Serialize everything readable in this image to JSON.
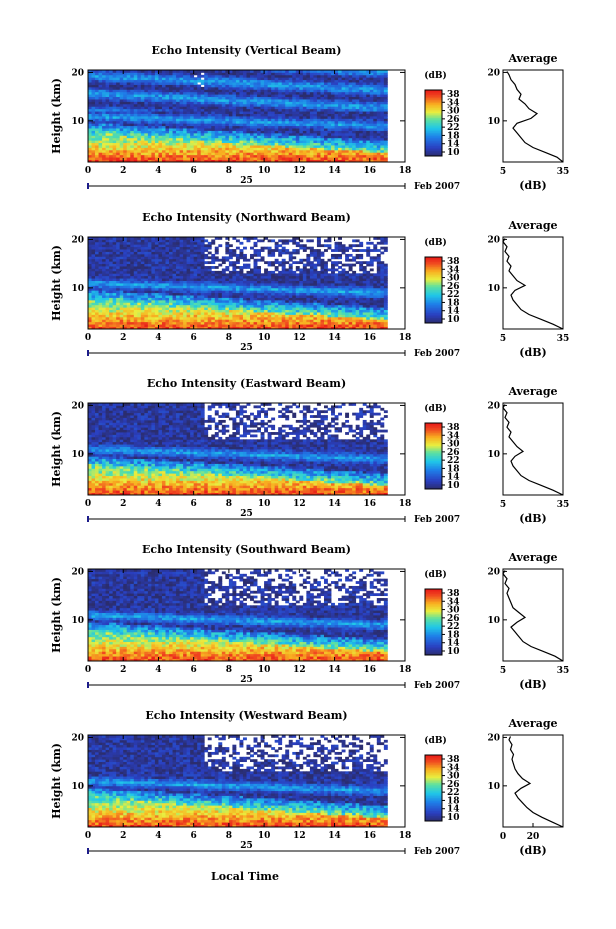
{
  "figure": {
    "xlabel": "Local Time"
  },
  "chart_data": [
    {
      "type": "heatmap",
      "title": "Echo Intensity (Vertical Beam)",
      "ylabel": "Height (km)",
      "xticks": [
        "0",
        "2",
        "4",
        "6",
        "8",
        "10",
        "12",
        "14",
        "16",
        "18"
      ],
      "yticks": [
        "10",
        "20"
      ],
      "xlim": [
        0,
        18
      ],
      "ylim": [
        1.5,
        20.5
      ],
      "data_xlim": [
        0,
        17
      ],
      "date_label": "25",
      "month_label": "Feb 2007",
      "colorbar": {
        "unit": "(dB)",
        "ticks": [
          "38",
          "34",
          "30",
          "26",
          "22",
          "18",
          "14",
          "10"
        ],
        "range": [
          10,
          38
        ]
      },
      "average": {
        "title": "Average",
        "xlabel": "(dB)",
        "xticks": [
          "5",
          "35"
        ],
        "xlim": [
          5,
          35
        ],
        "yticks": [
          "10",
          "20"
        ],
        "profile": [
          [
            35,
            1.5
          ],
          [
            32,
            2.5
          ],
          [
            26,
            3.5
          ],
          [
            20,
            4.5
          ],
          [
            16,
            5.5
          ],
          [
            14,
            6.5
          ],
          [
            12,
            7.5
          ],
          [
            10,
            8.5
          ],
          [
            12,
            9.5
          ],
          [
            19,
            10.5
          ],
          [
            22,
            11.5
          ],
          [
            18,
            12.5
          ],
          [
            16,
            13.5
          ],
          [
            13,
            14.5
          ],
          [
            14,
            15.5
          ],
          [
            12,
            16.5
          ],
          [
            11,
            17.5
          ],
          [
            9,
            18.5
          ],
          [
            8,
            19.5
          ],
          [
            7,
            20.2
          ]
        ]
      }
    },
    {
      "type": "heatmap",
      "title": "Echo Intensity (Northward Beam)",
      "ylabel": "Height (km)",
      "xticks": [
        "0",
        "2",
        "4",
        "6",
        "8",
        "10",
        "12",
        "14",
        "16",
        "18"
      ],
      "yticks": [
        "10",
        "20"
      ],
      "xlim": [
        0,
        18
      ],
      "ylim": [
        1.5,
        20.5
      ],
      "data_xlim": [
        0,
        17
      ],
      "date_label": "25",
      "month_label": "Feb 2007",
      "colorbar": {
        "unit": "(dB)",
        "ticks": [
          "38",
          "34",
          "30",
          "26",
          "22",
          "18",
          "14",
          "10"
        ],
        "range": [
          10,
          38
        ]
      },
      "average": {
        "title": "Average",
        "xlabel": "(dB)",
        "xticks": [
          "5",
          "35"
        ],
        "xlim": [
          5,
          35
        ],
        "yticks": [
          "10",
          "20"
        ],
        "profile": [
          [
            35,
            1.5
          ],
          [
            30,
            2.5
          ],
          [
            24,
            3.5
          ],
          [
            18,
            4.5
          ],
          [
            14,
            5.5
          ],
          [
            12,
            6.5
          ],
          [
            10,
            7.5
          ],
          [
            9,
            8.5
          ],
          [
            11,
            9.5
          ],
          [
            16,
            10.5
          ],
          [
            12,
            11.5
          ],
          [
            10,
            12.5
          ],
          [
            8,
            13.5
          ],
          [
            9,
            14.5
          ],
          [
            7,
            15.5
          ],
          [
            8,
            16.5
          ],
          [
            6,
            17.5
          ],
          [
            7,
            18.5
          ],
          [
            5,
            19.5
          ],
          [
            6,
            20.2
          ]
        ]
      }
    },
    {
      "type": "heatmap",
      "title": "Echo Intensity (Eastward Beam)",
      "ylabel": "Height (km)",
      "xticks": [
        "0",
        "2",
        "4",
        "6",
        "8",
        "10",
        "12",
        "14",
        "16",
        "18"
      ],
      "yticks": [
        "10",
        "20"
      ],
      "xlim": [
        0,
        18
      ],
      "ylim": [
        1.5,
        20.5
      ],
      "data_xlim": [
        0,
        17
      ],
      "date_label": "25",
      "month_label": "Feb 2007",
      "colorbar": {
        "unit": "(dB)",
        "ticks": [
          "38",
          "34",
          "30",
          "26",
          "22",
          "18",
          "14",
          "10"
        ],
        "range": [
          10,
          38
        ]
      },
      "average": {
        "title": "Average",
        "xlabel": "(dB)",
        "xticks": [
          "5",
          "35"
        ],
        "xlim": [
          5,
          35
        ],
        "yticks": [
          "10",
          "20"
        ],
        "profile": [
          [
            35,
            1.5
          ],
          [
            30,
            2.5
          ],
          [
            24,
            3.5
          ],
          [
            18,
            4.5
          ],
          [
            14,
            5.5
          ],
          [
            12,
            6.5
          ],
          [
            10,
            7.5
          ],
          [
            9,
            8.5
          ],
          [
            11,
            9.5
          ],
          [
            15,
            10.5
          ],
          [
            12,
            11.5
          ],
          [
            10,
            12.5
          ],
          [
            8,
            13.5
          ],
          [
            9,
            14.5
          ],
          [
            7,
            15.5
          ],
          [
            8,
            16.5
          ],
          [
            6,
            17.5
          ],
          [
            7,
            18.5
          ],
          [
            5,
            19.5
          ],
          [
            6,
            20.2
          ]
        ]
      }
    },
    {
      "type": "heatmap",
      "title": "Echo Intensity (Southward Beam)",
      "ylabel": "Height (km)",
      "xticks": [
        "0",
        "2",
        "4",
        "6",
        "8",
        "10",
        "12",
        "14",
        "16",
        "18"
      ],
      "yticks": [
        "10",
        "20"
      ],
      "xlim": [
        0,
        18
      ],
      "ylim": [
        1.5,
        20.5
      ],
      "data_xlim": [
        0,
        17
      ],
      "date_label": "25",
      "month_label": "Feb 2007",
      "colorbar": {
        "unit": "(dB)",
        "ticks": [
          "38",
          "34",
          "30",
          "26",
          "22",
          "18",
          "14",
          "10"
        ],
        "range": [
          10,
          38
        ]
      },
      "average": {
        "title": "Average",
        "xlabel": "(dB)",
        "xticks": [
          "5",
          "35"
        ],
        "xlim": [
          5,
          35
        ],
        "yticks": [
          "10",
          "20"
        ],
        "profile": [
          [
            35,
            1.5
          ],
          [
            31,
            2.5
          ],
          [
            25,
            3.5
          ],
          [
            19,
            4.5
          ],
          [
            15,
            5.5
          ],
          [
            13,
            6.5
          ],
          [
            11,
            7.5
          ],
          [
            9,
            8.5
          ],
          [
            12,
            9.5
          ],
          [
            16,
            10.5
          ],
          [
            13,
            11.5
          ],
          [
            10,
            12.5
          ],
          [
            9,
            13.5
          ],
          [
            8,
            14.5
          ],
          [
            7,
            15.5
          ],
          [
            8,
            16.5
          ],
          [
            6,
            17.5
          ],
          [
            7,
            18.5
          ],
          [
            5,
            19.5
          ],
          [
            6,
            20.2
          ]
        ]
      }
    },
    {
      "type": "heatmap",
      "title": "Echo Intensity (Westward Beam)",
      "ylabel": "Height (km)",
      "xticks": [
        "0",
        "2",
        "4",
        "6",
        "8",
        "10",
        "12",
        "14",
        "16",
        "18"
      ],
      "yticks": [
        "10",
        "20"
      ],
      "xlim": [
        0,
        18
      ],
      "ylim": [
        1.5,
        20.5
      ],
      "data_xlim": [
        0,
        17
      ],
      "date_label": "25",
      "month_label": "Feb 2007",
      "colorbar": {
        "unit": "(dB)",
        "ticks": [
          "38",
          "34",
          "30",
          "26",
          "22",
          "18",
          "14",
          "10"
        ],
        "range": [
          10,
          38
        ]
      },
      "average": {
        "title": "Average",
        "xlabel": "(dB)",
        "xticks": [
          "0",
          "20"
        ],
        "xlim": [
          0,
          40
        ],
        "yticks": [
          "10",
          "20"
        ],
        "profile": [
          [
            40,
            1.5
          ],
          [
            33,
            2.5
          ],
          [
            26,
            3.5
          ],
          [
            20,
            4.5
          ],
          [
            16,
            5.5
          ],
          [
            13,
            6.5
          ],
          [
            10,
            7.5
          ],
          [
            8,
            8.5
          ],
          [
            12,
            9.5
          ],
          [
            18,
            10.5
          ],
          [
            13,
            11.5
          ],
          [
            10,
            12.5
          ],
          [
            8,
            13.5
          ],
          [
            7,
            14.5
          ],
          [
            6,
            15.5
          ],
          [
            7,
            16.5
          ],
          [
            5,
            17.5
          ],
          [
            6,
            18.5
          ],
          [
            4,
            19.5
          ],
          [
            5,
            20.2
          ]
        ]
      }
    }
  ]
}
